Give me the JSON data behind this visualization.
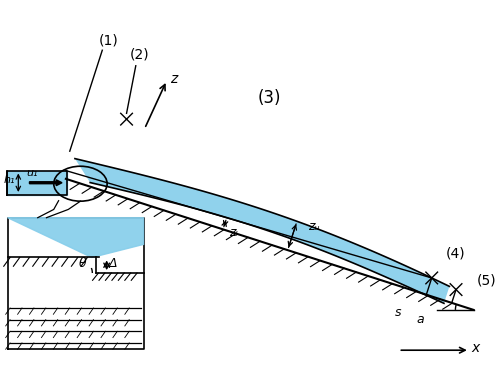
{
  "sky_blue": "#87CEEB",
  "line_color": "#000000",
  "bg_color": "#ffffff",
  "fig_width": 5.0,
  "fig_height": 3.81,
  "dpi": 100,
  "labels": {
    "1": "(1)",
    "2": "(2)",
    "3": "(3)",
    "4": "(4)",
    "5": "(5)",
    "z": "z",
    "x": "x",
    "h1": "h₁",
    "u1": "u₁",
    "zu": "zᵤ",
    "zl": "zₗ",
    "s": "s",
    "a": "a",
    "theta": "θ",
    "delta": "Δ"
  }
}
